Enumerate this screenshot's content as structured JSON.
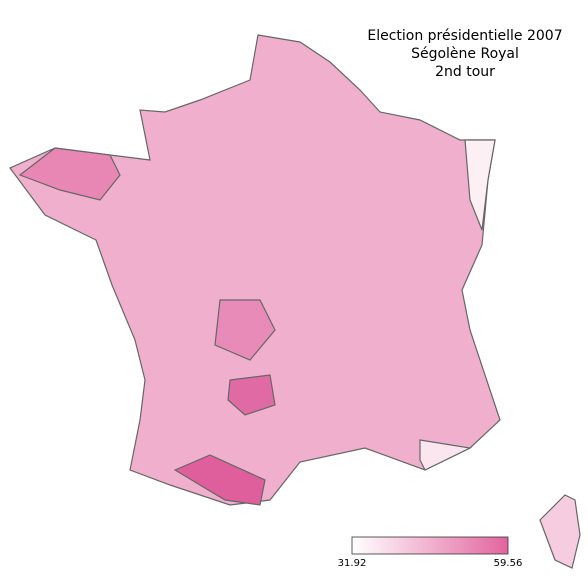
{
  "title": [
    "Election présidentielle 2007",
    "Ségolène Royal",
    "2nd tour"
  ],
  "colorbar": {
    "min": 31.92,
    "max": 59.56,
    "colors": [
      "#ffffff",
      "#e3649e"
    ]
  }
}
